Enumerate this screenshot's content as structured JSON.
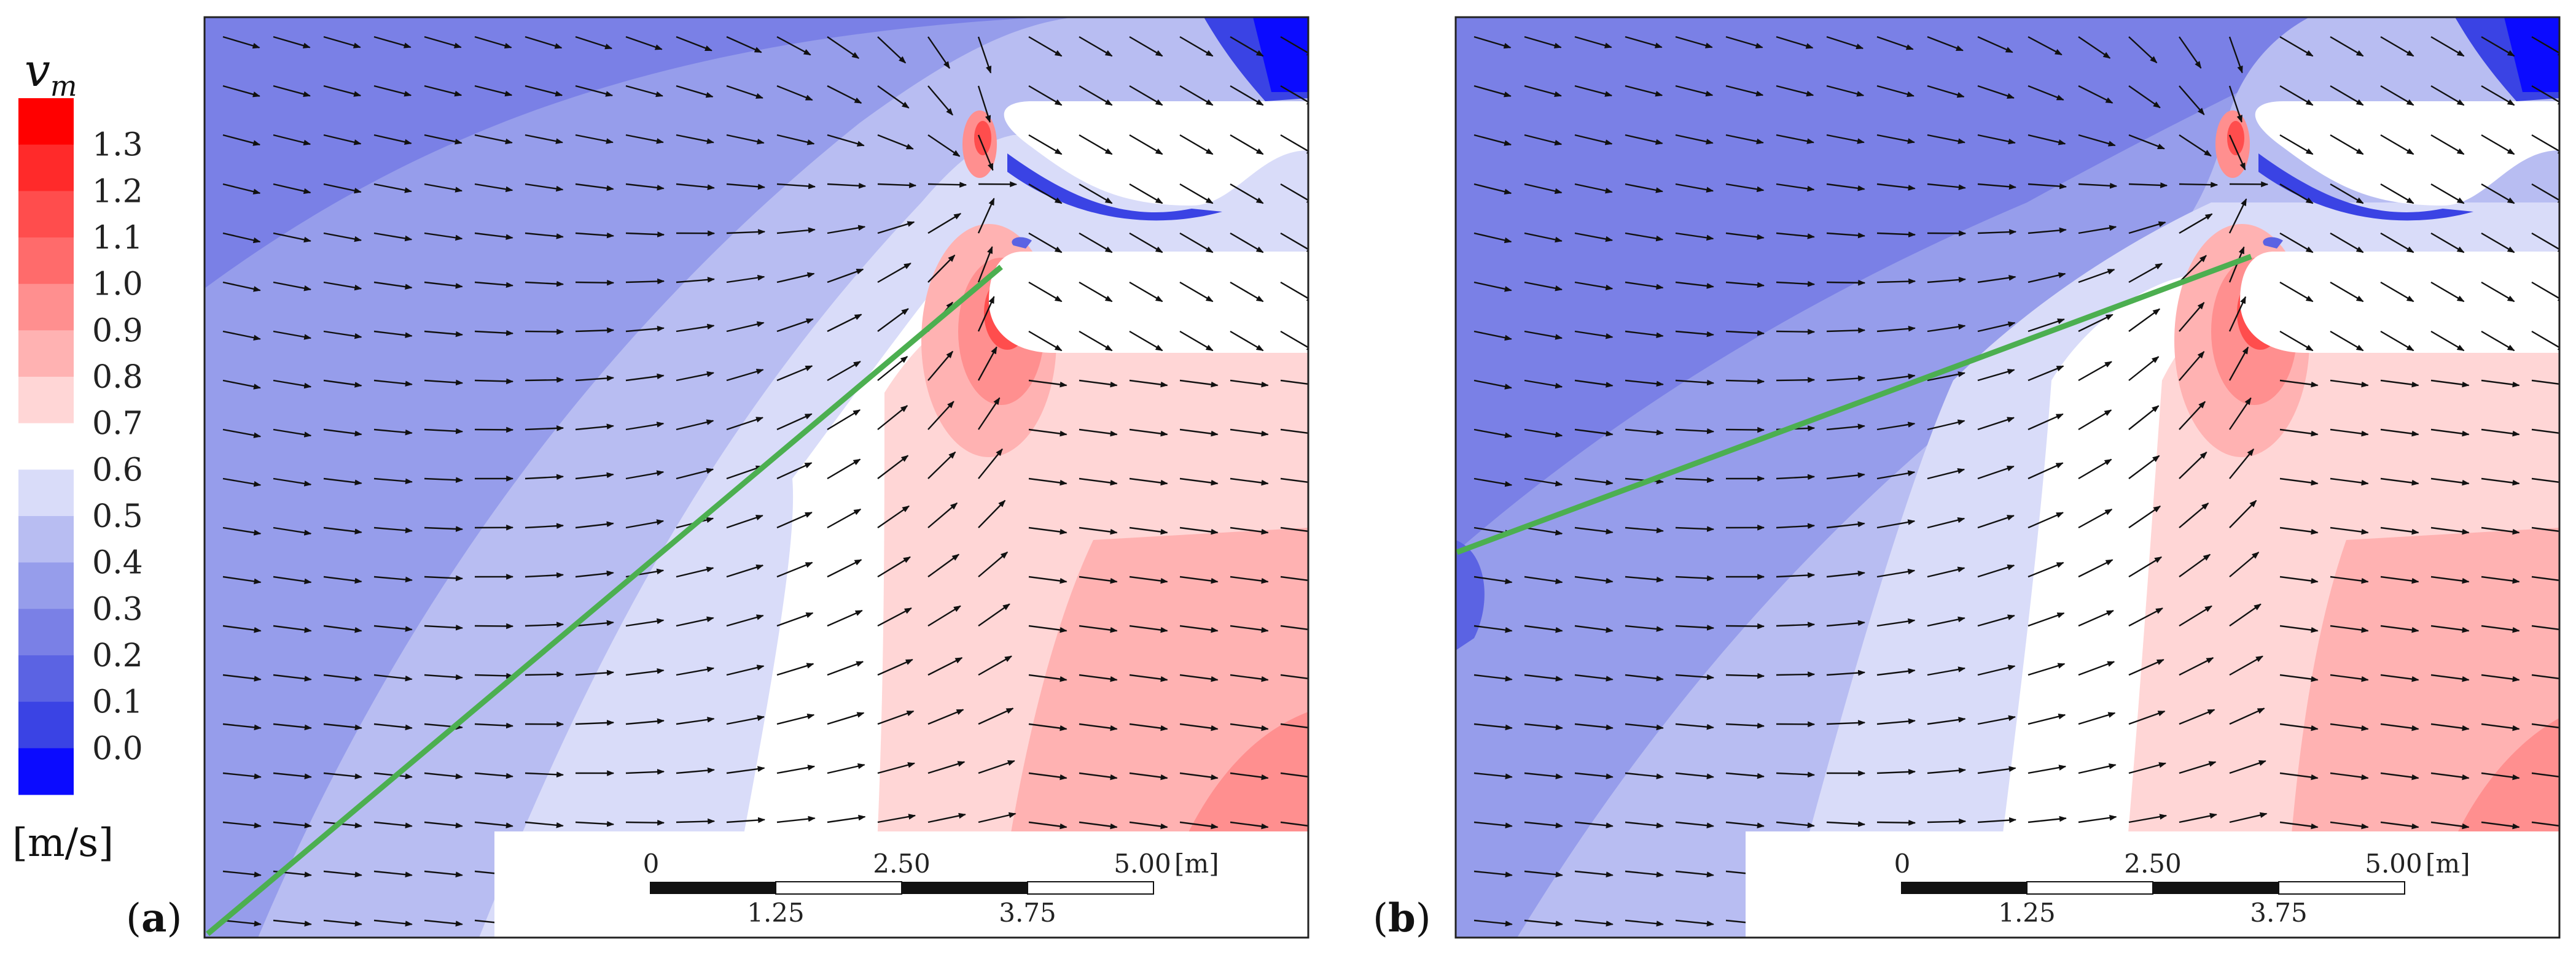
{
  "legend": {
    "symbol": "v",
    "subscript": "m",
    "unit": "[m/s]",
    "ticks": [
      "1.3",
      "1.2",
      "1.1",
      "1.0",
      "0.9",
      "0.8",
      "0.7",
      "0.6",
      "0.5",
      "0.4",
      "0.3",
      "0.2",
      "0.1",
      "0.0"
    ],
    "colors": [
      "#ff0000",
      "#ff2a2a",
      "#ff4d4d",
      "#ff6b6b",
      "#ff8f8f",
      "#ffb2b2",
      "#ffd6d6",
      "#ffffff",
      "#d9dcf9",
      "#b8bdf2",
      "#969deb",
      "#7a80e6",
      "#5b63e3",
      "#3a43e4",
      "#0b0bff"
    ]
  },
  "panels": [
    {
      "label_paren_open": "(",
      "label": "a",
      "label_paren_close": ")",
      "scale": {
        "ticks_top": [
          "0",
          "2.50",
          "5.00"
        ],
        "ticks_bottom": [
          "1.25",
          "3.75"
        ],
        "unit": "[m]"
      }
    },
    {
      "label_paren_open": "(",
      "label": "b",
      "label_paren_close": ")",
      "scale": {
        "ticks_top": [
          "0",
          "2.50",
          "5.00"
        ],
        "ticks_bottom": [
          "1.25",
          "3.75"
        ],
        "unit": "[m]"
      }
    }
  ]
}
